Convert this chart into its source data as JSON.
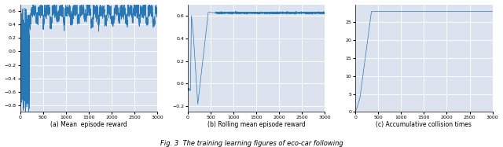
{
  "fig_width": 6.4,
  "fig_height": 1.87,
  "dpi": 100,
  "bg_color": "#dde3ee",
  "line_color": "#2878b5",
  "line_width": 0.5,
  "n_episodes": 3000,
  "subplot1": {
    "xlabel": "(a) Mean  episode reward",
    "ylim": [
      -0.9,
      0.7
    ],
    "yticks": [
      -0.8,
      -0.6,
      -0.4,
      -0.2,
      0.0,
      0.2,
      0.4,
      0.6
    ],
    "xticks": [
      0,
      500,
      1000,
      1500,
      2000,
      2500,
      3000
    ]
  },
  "subplot2": {
    "xlabel": "(b) Rolling mean episode reward",
    "ylim": [
      -0.25,
      0.7
    ],
    "yticks": [
      -0.2,
      0.0,
      0.2,
      0.4,
      0.6
    ],
    "xticks": [
      0,
      500,
      1000,
      1500,
      2000,
      2500,
      3000
    ]
  },
  "subplot3": {
    "xlabel": "(c) Accumulative collision times",
    "ylim": [
      0,
      30
    ],
    "yticks": [
      0,
      5,
      10,
      15,
      20,
      25
    ],
    "xticks": [
      0,
      500,
      1000,
      1500,
      2000,
      2500,
      3000
    ]
  },
  "figure_caption": "Fig. 3  The training learning figures of eco-car following"
}
